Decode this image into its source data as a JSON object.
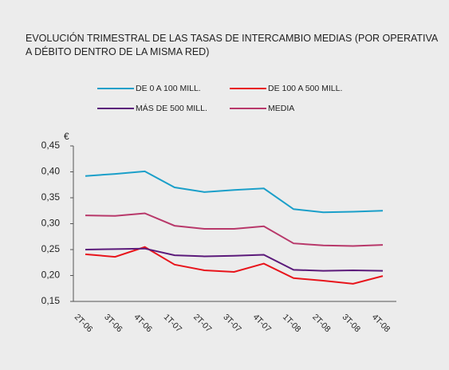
{
  "chart_data": {
    "type": "line",
    "title": "EVOLUCIÓN TRIMESTRAL DE LAS TASAS DE INTERCAMBIO MEDIAS (POR OPERATIVA A DÉBITO DENTRO DE LA MISMA RED)",
    "y_unit": "€",
    "categories": [
      "2T-06",
      "3T-06",
      "4T-06",
      "1T-07",
      "2T-07",
      "3T-07",
      "4T-07",
      "1T-08",
      "2T-08",
      "3T-08",
      "4T-08"
    ],
    "series": [
      {
        "name": "DE 0 A 100 MILL.",
        "color": "#1a9fc9",
        "values": [
          0.392,
          0.396,
          0.401,
          0.37,
          0.361,
          0.365,
          0.368,
          0.328,
          0.322,
          0.323,
          0.325
        ]
      },
      {
        "name": "DE 100 A 500 MILL.",
        "color": "#e8141b",
        "values": [
          0.241,
          0.236,
          0.255,
          0.221,
          0.21,
          0.207,
          0.223,
          0.195,
          0.19,
          0.184,
          0.199
        ]
      },
      {
        "name": "MÁS DE 500 MILL.",
        "color": "#5b1a7a",
        "values": [
          0.25,
          0.251,
          0.252,
          0.239,
          0.237,
          0.238,
          0.24,
          0.211,
          0.209,
          0.21,
          0.209
        ]
      },
      {
        "name": "MEDIA",
        "color": "#b8386a",
        "values": [
          0.316,
          0.315,
          0.32,
          0.296,
          0.29,
          0.29,
          0.295,
          0.262,
          0.258,
          0.257,
          0.259
        ]
      }
    ],
    "ylim": [
      0.15,
      0.45
    ],
    "yticks": [
      {
        "value": 0.15,
        "label": "0,15"
      },
      {
        "value": 0.2,
        "label": "0,20"
      },
      {
        "value": 0.25,
        "label": "0,25"
      },
      {
        "value": 0.3,
        "label": "0,30"
      },
      {
        "value": 0.35,
        "label": "0,35"
      },
      {
        "value": 0.4,
        "label": "0,40"
      },
      {
        "value": 0.45,
        "label": "0,45"
      }
    ]
  }
}
